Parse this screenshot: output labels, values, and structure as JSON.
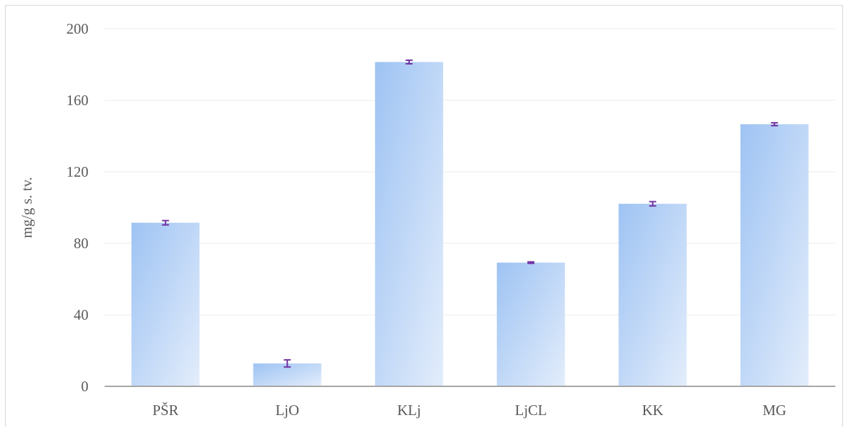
{
  "chart_data": {
    "type": "bar",
    "title": "",
    "xlabel": "",
    "ylabel": "mg/g s. tv.",
    "categories": [
      "PŠR",
      "LjO",
      "KLj",
      "LjCL",
      "KK",
      "MG"
    ],
    "values": [
      91.5,
      12.8,
      181.4,
      69.2,
      102.1,
      146.6
    ],
    "errors": [
      1.2,
      2.0,
      1.0,
      0.4,
      1.2,
      0.8
    ],
    "ylim": [
      0,
      200
    ],
    "yticks": [
      "0",
      "40",
      "80",
      "120",
      "160",
      "200"
    ],
    "grid": true,
    "legend": "none",
    "colors": {
      "bar_top_left": "#9ec3f3",
      "bar_bottom_right": "#e3edfb",
      "error_bar": "#7030a0",
      "gridline": "#ebebeb",
      "axis": "#a6a6a6",
      "text": "#595959"
    }
  }
}
